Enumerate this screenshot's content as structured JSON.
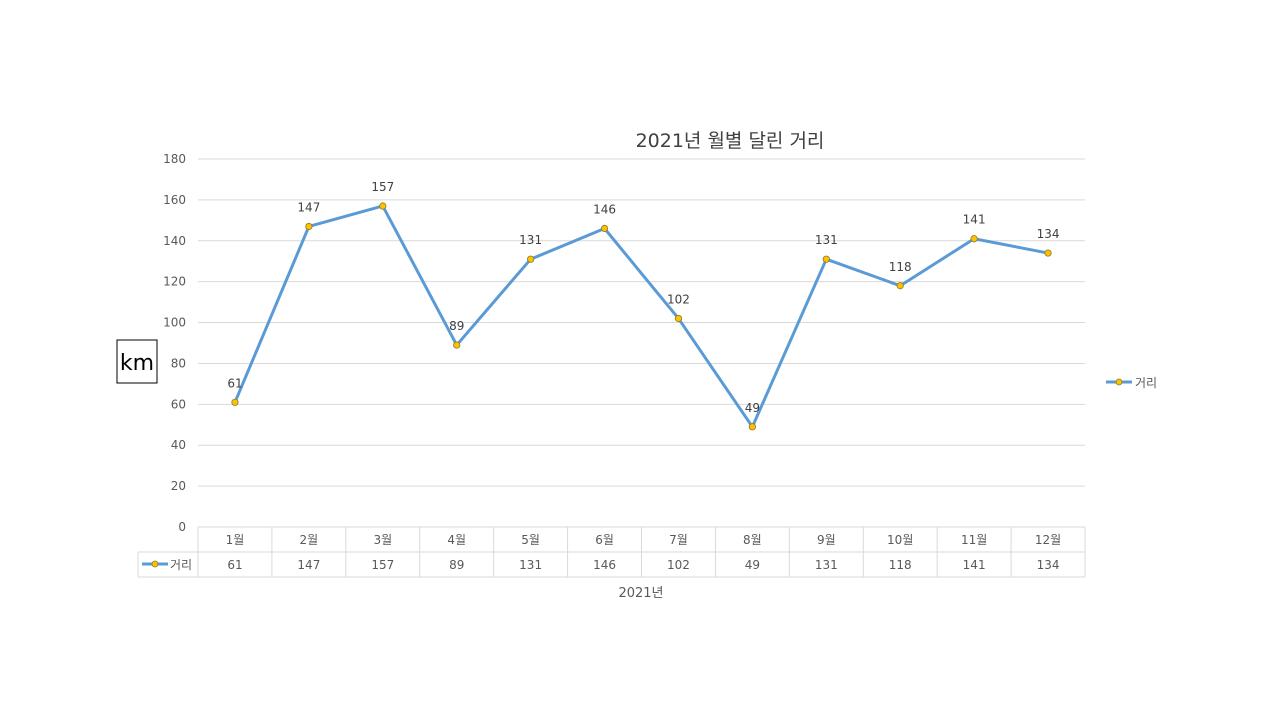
{
  "chart_data": {
    "type": "line",
    "title": "2021년 월별 달린 거리",
    "ylabel": "km",
    "xlabel": "2021년",
    "categories": [
      "1월",
      "2월",
      "3월",
      "4월",
      "5월",
      "6월",
      "7월",
      "8월",
      "9월",
      "10월",
      "11월",
      "12월"
    ],
    "series": [
      {
        "name": "거리",
        "values": [
          61,
          147,
          157,
          89,
          131,
          146,
          102,
          49,
          131,
          118,
          141,
          134
        ]
      }
    ],
    "ylim": [
      0,
      180
    ],
    "yticks": [
      "0",
      "20",
      "40",
      "60",
      "80",
      "100",
      "120",
      "140",
      "160",
      "180"
    ],
    "data_labels": [
      "61",
      "147",
      "157",
      "89",
      "131",
      "146",
      "102",
      "49",
      "131",
      "118",
      "141",
      "134"
    ],
    "table_values": [
      "61",
      "147",
      "157",
      "89",
      "131",
      "146",
      "102",
      "49",
      "131",
      "118",
      "141",
      "134"
    ],
    "grid": true,
    "legend": "right",
    "data_table": true,
    "colors": {
      "line": "#5b9bd5",
      "marker": "#ffc000",
      "marker_edge": "#8a7a2a",
      "grid": "#d9d9d9"
    }
  }
}
